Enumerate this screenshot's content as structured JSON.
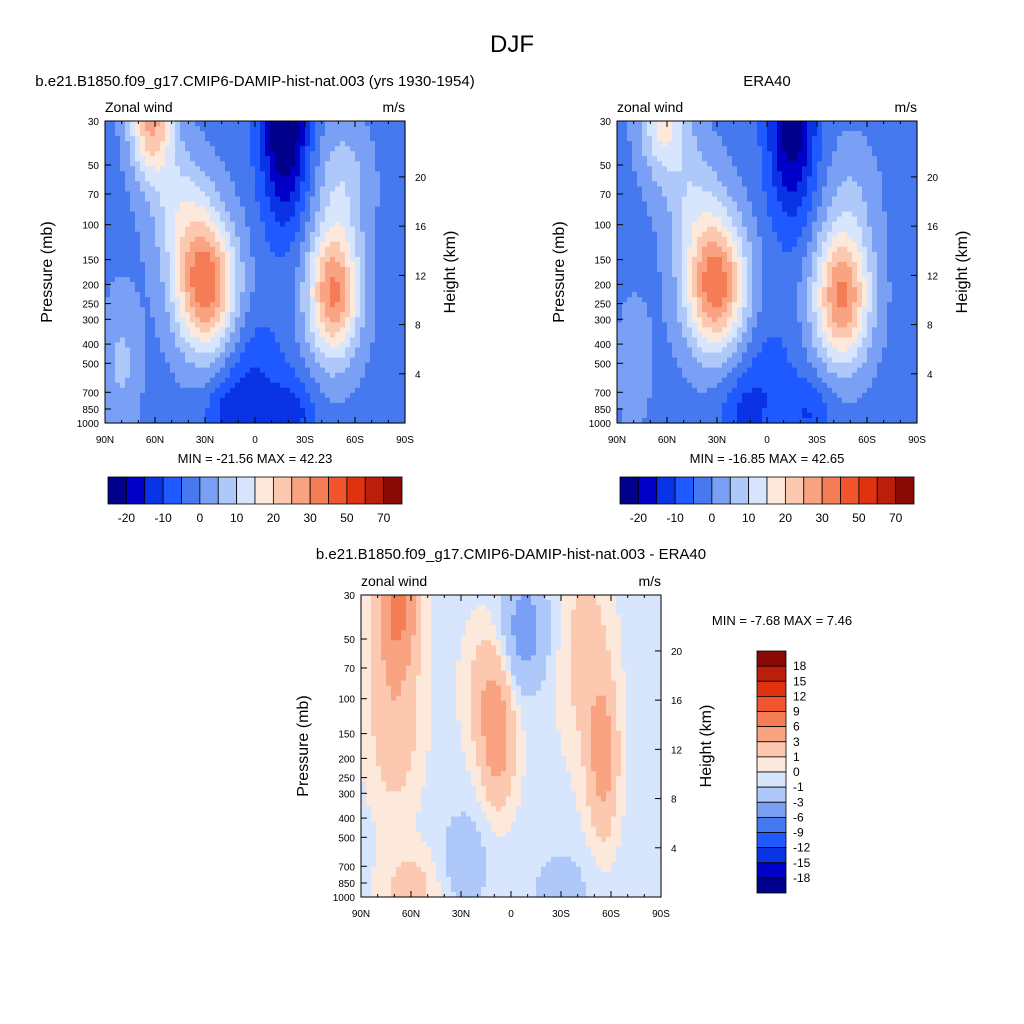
{
  "figure": {
    "title": "DJF"
  },
  "palettes": {
    "full": [
      "#00008b",
      "#0000c8",
      "#0a33e6",
      "#1e5aff",
      "#4678f0",
      "#7aa0f5",
      "#aec8fa",
      "#d7e6fc",
      "#fde8dc",
      "#fcc8b0",
      "#f9a382",
      "#f57d55",
      "#f0552d",
      "#e1320f",
      "#bb1e0a",
      "#8c0a06"
    ],
    "diff": [
      "#00008b",
      "#0000c8",
      "#0a33e6",
      "#1e5aff",
      "#4678f0",
      "#7aa0f5",
      "#aec8fa",
      "#d7e6fc",
      "#fde8dc",
      "#fcc8b0",
      "#f9a382",
      "#f57d55",
      "#f0552d",
      "#e1320f",
      "#bb1e0a",
      "#8c0a06"
    ]
  },
  "chart_data": [
    {
      "type": "heatmap",
      "title": "b.e21.B1850.f09_g17.CMIP6-DAMIP-hist-nat.003 (yrs 1930-1954)",
      "left_label": "Zonal wind",
      "right_label": "m/s",
      "ylabel": "Pressure (mb)",
      "y2label": "Height (km)",
      "x_ticks": [
        "90N",
        "60N",
        "30N",
        "0",
        "30S",
        "60S",
        "90S"
      ],
      "x_range": [
        90,
        -90
      ],
      "y_ticks": [
        30,
        50,
        70,
        100,
        150,
        200,
        250,
        300,
        400,
        500,
        700,
        850,
        1000
      ],
      "y_range": [
        30,
        1000
      ],
      "y_scale": "log",
      "height_ticks": [
        20,
        16,
        12,
        8,
        4
      ],
      "stats": "MIN = -21.56  MAX =  42.23",
      "min": -21.56,
      "max": 42.23,
      "palette": "full",
      "levels": [
        -25,
        -20,
        -15,
        -10,
        -5,
        0,
        5,
        10,
        15,
        20,
        25,
        30,
        40,
        50,
        60,
        70
      ],
      "level_labels": [
        "-20",
        "-10",
        "0",
        "10",
        "20",
        "30",
        "50",
        "70"
      ],
      "colorbar": "horizontal",
      "field": {
        "background": -2,
        "blobs": [
          {
            "lat": 30,
            "p": 200,
            "amp": 36,
            "slat": 13,
            "sp": 0.55
          },
          {
            "lat": 45,
            "p": 80,
            "amp": 12,
            "slat": 13,
            "sp": 0.5
          },
          {
            "lat": 62,
            "p": 30,
            "amp": 28,
            "slat": 9,
            "sp": 0.45
          },
          {
            "lat": -47,
            "p": 220,
            "amp": 33,
            "slat": 11,
            "sp": 0.55
          },
          {
            "lat": -52,
            "p": 60,
            "amp": 10,
            "slat": 12,
            "sp": 0.5
          },
          {
            "lat": -18,
            "p": 30,
            "amp": -26,
            "slat": 10,
            "sp": 0.8
          },
          {
            "lat": 0,
            "p": 600,
            "amp": -8,
            "slat": 12,
            "sp": 0.5
          },
          {
            "lat": 15,
            "p": 900,
            "amp": -10,
            "slat": 10,
            "sp": 0.3
          },
          {
            "lat": -22,
            "p": 900,
            "amp": -10,
            "slat": 10,
            "sp": 0.3
          },
          {
            "lat": 80,
            "p": 500,
            "amp": 8,
            "slat": 8,
            "sp": 0.6
          }
        ]
      }
    },
    {
      "type": "heatmap",
      "title": "ERA40",
      "left_label": "zonal wind",
      "right_label": "m/s",
      "ylabel": "Pressure (mb)",
      "y2label": "Height (km)",
      "x_ticks": [
        "90N",
        "60N",
        "30N",
        "0",
        "30S",
        "60S",
        "90S"
      ],
      "x_range": [
        90,
        -90
      ],
      "y_ticks": [
        30,
        50,
        70,
        100,
        150,
        200,
        250,
        300,
        400,
        500,
        700,
        850,
        1000
      ],
      "y_range": [
        30,
        1000
      ],
      "y_scale": "log",
      "height_ticks": [
        20,
        16,
        12,
        8,
        4
      ],
      "stats": "MIN = -16.85  MAX =  42.65",
      "min": -16.85,
      "max": 42.65,
      "palette": "full",
      "levels": [
        -25,
        -20,
        -15,
        -10,
        -5,
        0,
        5,
        10,
        15,
        20,
        25,
        30,
        40,
        50,
        60,
        70
      ],
      "level_labels": [
        "-20",
        "-10",
        "0",
        "10",
        "20",
        "30",
        "50",
        "70"
      ],
      "colorbar": "horizontal",
      "field": {
        "background": -2,
        "blobs": [
          {
            "lat": 31,
            "p": 200,
            "amp": 36,
            "slat": 13,
            "sp": 0.55
          },
          {
            "lat": 45,
            "p": 70,
            "amp": 9,
            "slat": 13,
            "sp": 0.5
          },
          {
            "lat": 62,
            "p": 30,
            "amp": 18,
            "slat": 10,
            "sp": 0.45
          },
          {
            "lat": -45,
            "p": 230,
            "amp": 33,
            "slat": 12,
            "sp": 0.55
          },
          {
            "lat": -50,
            "p": 70,
            "amp": 6,
            "slat": 12,
            "sp": 0.5
          },
          {
            "lat": -15,
            "p": 30,
            "amp": -22,
            "slat": 10,
            "sp": 0.8
          },
          {
            "lat": 0,
            "p": 600,
            "amp": -6,
            "slat": 12,
            "sp": 0.5
          },
          {
            "lat": 15,
            "p": 900,
            "amp": -8,
            "slat": 10,
            "sp": 0.3
          },
          {
            "lat": -25,
            "p": 900,
            "amp": -8,
            "slat": 10,
            "sp": 0.3
          },
          {
            "lat": 80,
            "p": 500,
            "amp": 5,
            "slat": 8,
            "sp": 0.6
          }
        ]
      }
    },
    {
      "type": "heatmap",
      "title": "b.e21.B1850.f09_g17.CMIP6-DAMIP-hist-nat.003 - ERA40",
      "left_label": "zonal wind",
      "right_label": "m/s",
      "ylabel": "Pressure (mb)",
      "y2label": "Height (km)",
      "x_ticks": [
        "90N",
        "60N",
        "30N",
        "0",
        "30S",
        "60S",
        "90S"
      ],
      "x_range": [
        90,
        -90
      ],
      "y_ticks": [
        30,
        50,
        70,
        100,
        150,
        200,
        250,
        300,
        400,
        500,
        700,
        850,
        1000
      ],
      "y_range": [
        30,
        1000
      ],
      "y_scale": "log",
      "height_ticks": [
        20,
        16,
        12,
        8,
        4
      ],
      "stats": "MIN =  -7.68  MAX =   7.46",
      "min": -7.68,
      "max": 7.46,
      "palette": "diff",
      "levels": [
        -21,
        -18,
        -15,
        -12,
        -9,
        -6,
        -3,
        -1,
        0,
        1,
        3,
        6,
        9,
        12,
        15,
        18
      ],
      "level_labels": [
        "18",
        "15",
        "12",
        "9",
        "6",
        "3",
        "1",
        "0",
        "-1",
        "-3",
        "-6",
        "-9",
        "-12",
        "-15",
        "-18"
      ],
      "colorbar": "vertical",
      "field": {
        "background": -0.3,
        "blobs": [
          {
            "lat": 68,
            "p": 35,
            "amp": 7,
            "slat": 8,
            "sp": 0.45
          },
          {
            "lat": 70,
            "p": 120,
            "amp": 3,
            "slat": 10,
            "sp": 0.7
          },
          {
            "lat": 8,
            "p": 170,
            "amp": 4.2,
            "slat": 7,
            "sp": 0.5
          },
          {
            "lat": 14,
            "p": 90,
            "amp": 2.5,
            "slat": 9,
            "sp": 0.5
          },
          {
            "lat": -55,
            "p": 200,
            "amp": 4.5,
            "slat": 6,
            "sp": 0.6
          },
          {
            "lat": -45,
            "p": 60,
            "amp": 2.2,
            "slat": 10,
            "sp": 0.8
          },
          {
            "lat": -8,
            "p": 45,
            "amp": -4,
            "slat": 9,
            "sp": 0.45
          },
          {
            "lat": 28,
            "p": 650,
            "amp": -1.8,
            "slat": 10,
            "sp": 0.4
          },
          {
            "lat": 60,
            "p": 900,
            "amp": 2,
            "slat": 12,
            "sp": 0.3
          },
          {
            "lat": -30,
            "p": 900,
            "amp": -1.5,
            "slat": 12,
            "sp": 0.3
          }
        ]
      }
    }
  ]
}
